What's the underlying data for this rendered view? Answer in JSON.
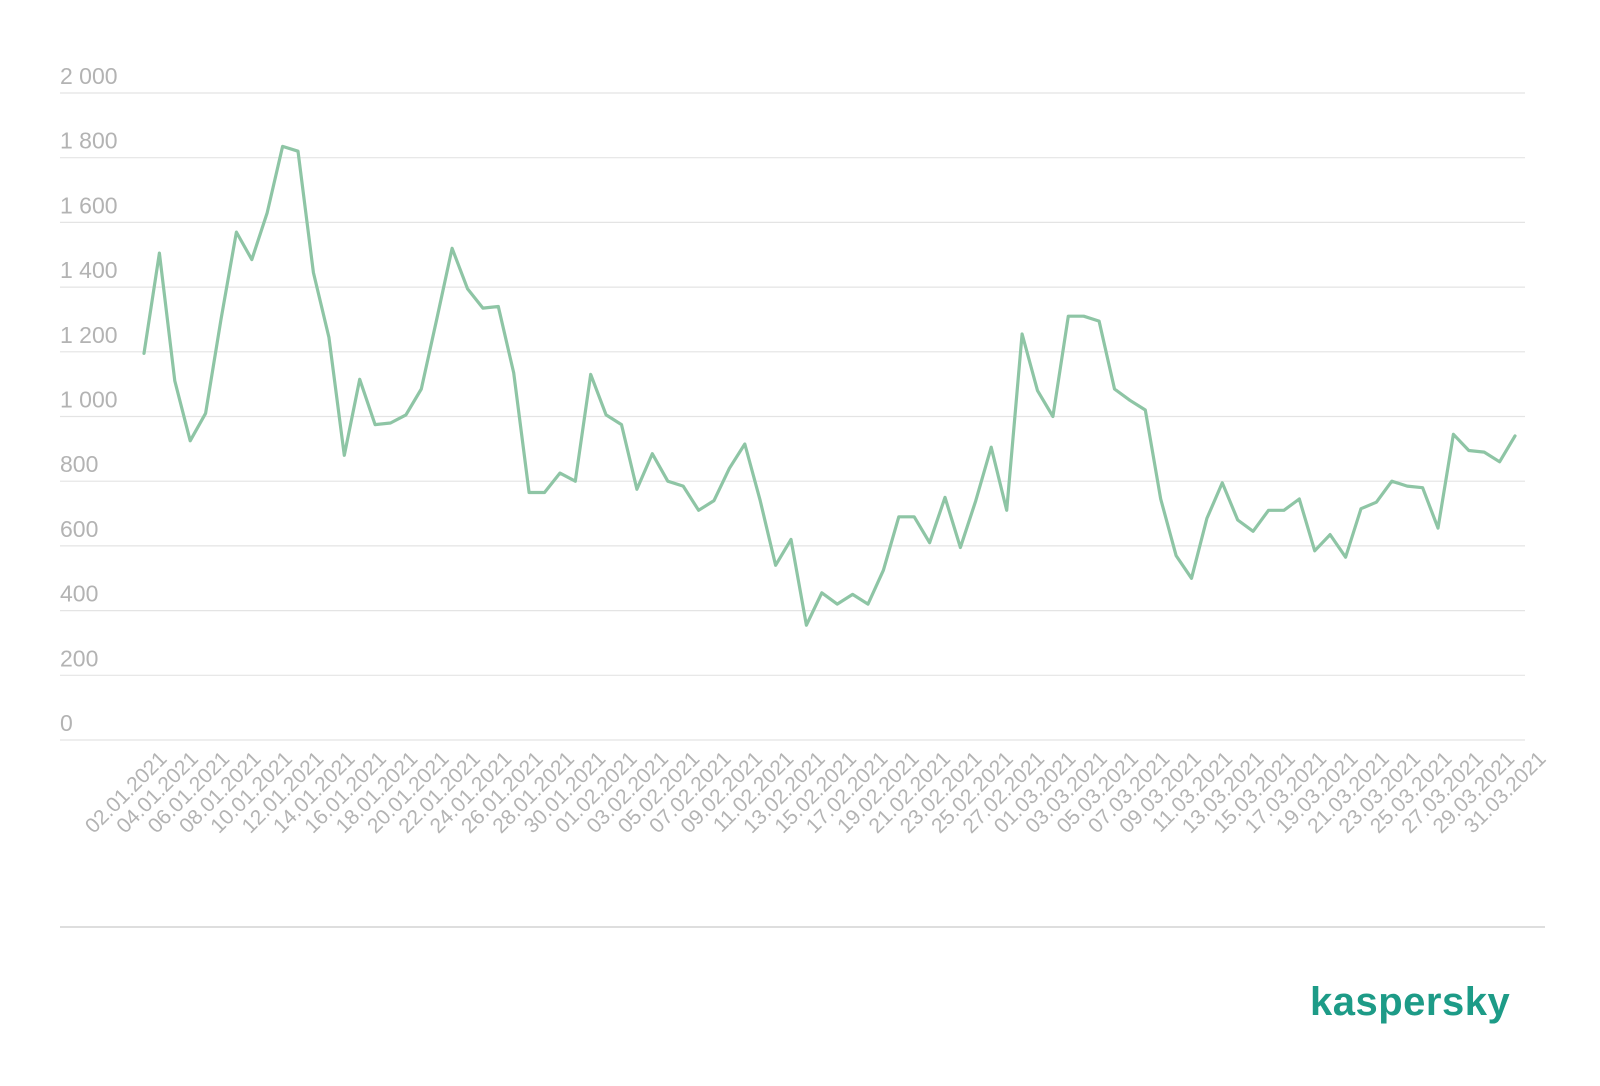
{
  "brand": {
    "logo_text": "kaspersky",
    "accent_color": "#1d9b87"
  },
  "chart_data": {
    "type": "line",
    "title": "",
    "xlabel": "",
    "ylabel": "",
    "ylim": [
      0,
      2000
    ],
    "y_ticks": [
      0,
      200,
      400,
      600,
      800,
      1000,
      1200,
      1400,
      1600,
      1800,
      2000
    ],
    "y_tick_labels": [
      "0",
      "200",
      "400",
      "600",
      "800",
      "1 000",
      "1 200",
      "1 400",
      "1 600",
      "1 800",
      "2 000"
    ],
    "grid": true,
    "legend": "none",
    "series_color": "#8ec5a5",
    "x_tick_labels": [
      "02.01.2021",
      "04.01.2021",
      "06.01.2021",
      "08.01.2021",
      "10.01.2021",
      "12.01.2021",
      "14.01.2021",
      "16.01.2021",
      "18.01.2021",
      "20.01.2021",
      "22.01.2021",
      "24.01.2021",
      "26.01.2021",
      "28.01.2021",
      "30.01.2021",
      "01.02.2021",
      "03.02.2021",
      "05.02.2021",
      "07.02.2021",
      "09.02.2021",
      "11.02.2021",
      "13.02.2021",
      "15.02.2021",
      "17.02.2021",
      "19.02.2021",
      "21.02.2021",
      "23.02.2021",
      "25.02.2021",
      "27.02.2021",
      "01.03.2021",
      "03.03.2021",
      "05.03.2021",
      "07.03.2021",
      "09.03.2021",
      "11.03.2021",
      "13.03.2021",
      "15.03.2021",
      "17.03.2021",
      "19.03.2021",
      "21.03.2021",
      "23.03.2021",
      "25.03.2021",
      "27.03.2021",
      "29.03.2021",
      "31.03.2021"
    ],
    "series": [
      {
        "values": [
          1195,
          1505,
          1110,
          925,
          1010,
          1300,
          1570,
          1485,
          1630,
          1835,
          1820,
          1445,
          1245,
          880,
          1115,
          975,
          980,
          1005,
          1085,
          1300,
          1520,
          1395,
          1335,
          1340,
          1135,
          765,
          765,
          825,
          800,
          1130,
          1005,
          975,
          775,
          885,
          800,
          785,
          710,
          740,
          840,
          915,
          740,
          540,
          620,
          355,
          455,
          420,
          450,
          420,
          525,
          690,
          690,
          610,
          750,
          595,
          740,
          905,
          710,
          1255,
          1080,
          1000,
          1310,
          1310,
          1295,
          1085,
          1050,
          1020,
          745,
          570,
          500,
          685,
          795,
          680,
          645,
          710,
          710,
          745,
          585,
          635,
          565,
          715,
          735,
          800,
          785,
          780,
          655,
          945,
          895,
          890,
          860,
          940
        ]
      }
    ]
  }
}
